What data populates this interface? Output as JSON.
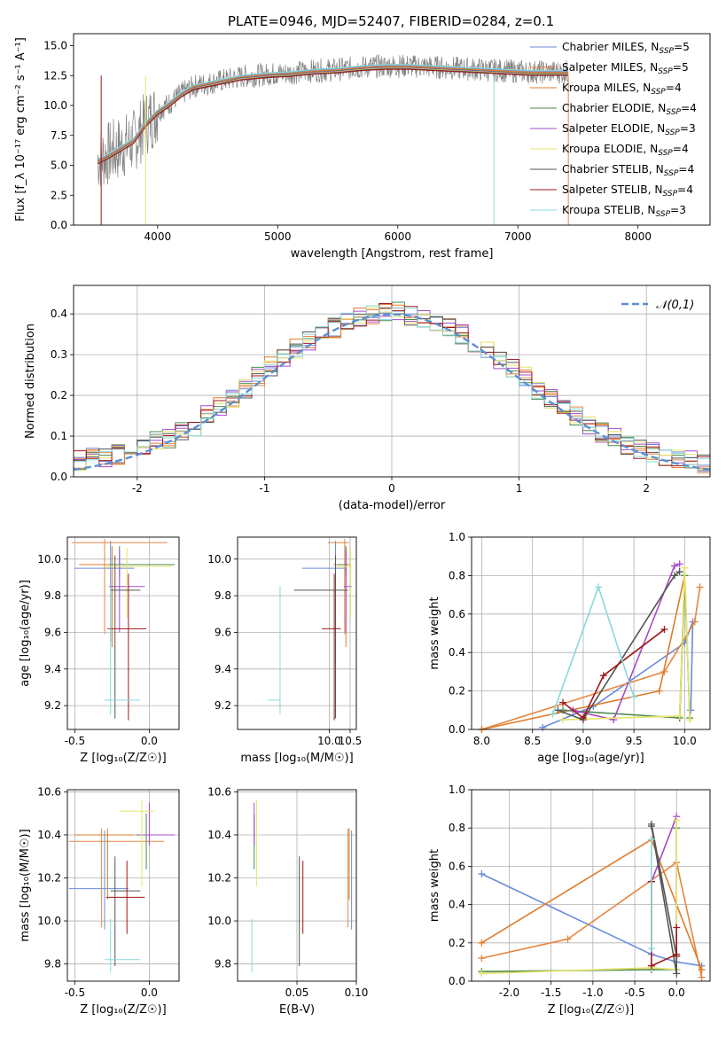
{
  "figure": {
    "title": "PLATE=0946, MJD=52407, FIBERID=0284, z=0.1"
  },
  "series_colors": [
    "#6a8bdb",
    "#e68642",
    "#e07c2a",
    "#4b8a4b",
    "#a64ac9",
    "#e6e36a",
    "#555555",
    "#a01818",
    "#8ad9d9"
  ],
  "chart_data": [
    {
      "type": "line",
      "title": "PLATE=0946, MJD=52407, FIBERID=0284, z=0.1",
      "xlabel": "wavelength [Angstrom, rest frame]",
      "ylabel": "Flux [f_λ 10⁻¹⁷ erg cm⁻² s⁻¹ A⁻¹]",
      "xlim": [
        3300,
        8600
      ],
      "ylim": [
        0,
        16
      ],
      "xticks": [
        4000,
        5000,
        6000,
        7000,
        8000
      ],
      "yticks": [
        0.0,
        2.5,
        5.0,
        7.5,
        10.0,
        12.5,
        15.0
      ],
      "grid": false,
      "legend": "right",
      "data_x": [
        3500,
        3600,
        3700,
        3800,
        3900,
        4000,
        4100,
        4200,
        4300,
        4500,
        4700,
        4900,
        5100,
        5300,
        5500,
        5700,
        5900,
        6100,
        6300,
        6500,
        6700,
        6900,
        7100,
        7300,
        7420
      ],
      "data_y": [
        5.5,
        6.0,
        6.5,
        7.0,
        8.5,
        9.5,
        10.2,
        11.0,
        11.6,
        12.0,
        12.4,
        12.6,
        12.7,
        12.9,
        13.0,
        13.2,
        13.3,
        13.3,
        13.2,
        13.1,
        13.0,
        12.9,
        12.8,
        12.8,
        12.8
      ],
      "model_x": [
        3500,
        3600,
        3700,
        3800,
        3900,
        4000,
        4100,
        4200,
        4300,
        4500,
        4700,
        4900,
        5100,
        5300,
        5500,
        5700,
        5900,
        6100,
        6300,
        6500,
        6700,
        6900,
        7100,
        7300,
        7420
      ],
      "model_y": [
        5.3,
        5.8,
        6.4,
        7.0,
        8.4,
        9.4,
        10.1,
        10.9,
        11.5,
        11.9,
        12.3,
        12.5,
        12.6,
        12.8,
        12.9,
        13.1,
        13.2,
        13.2,
        13.1,
        13.0,
        12.9,
        12.8,
        12.7,
        12.7,
        12.7
      ],
      "legend_entries": [
        {
          "label": "Chabrier MILES, N",
          "sub": "SSP",
          "tail": "=5"
        },
        {
          "label": "Salpeter MILES, N",
          "sub": "SSP",
          "tail": "=5"
        },
        {
          "label": "Kroupa MILES, N",
          "sub": "SSP",
          "tail": "=4"
        },
        {
          "label": "Chabrier ELODIE, N",
          "sub": "SSP",
          "tail": "=4"
        },
        {
          "label": "Salpeter ELODIE, N",
          "sub": "SSP",
          "tail": "=3"
        },
        {
          "label": "Kroupa ELODIE, N",
          "sub": "SSP",
          "tail": "=4"
        },
        {
          "label": "Chabrier STELIB, N",
          "sub": "SSP",
          "tail": "=4"
        },
        {
          "label": "Salpeter STELIB, N",
          "sub": "SSP",
          "tail": "=4"
        },
        {
          "label": "Kroupa STELIB, N",
          "sub": "SSP",
          "tail": "=3"
        }
      ]
    },
    {
      "type": "histogram",
      "xlabel": "(data-model)/error",
      "ylabel": "Normed distribution",
      "xlim": [
        -2.5,
        2.5
      ],
      "ylim": [
        0,
        0.47
      ],
      "xticks": [
        -2,
        -1,
        0,
        1,
        2
      ],
      "yticks": [
        0.0,
        0.1,
        0.2,
        0.3,
        0.4
      ],
      "grid": true,
      "legend": "top-right",
      "bin_edges_start": -2.5,
      "bin_width": 0.1,
      "curve_label": "𝒩(0,1)",
      "curve_color": "#5b8fd6",
      "series": [
        {
          "values": [
            0.04,
            0.05,
            0.048,
            0.055,
            0.07,
            0.075,
            0.09,
            0.095,
            0.11,
            0.125,
            0.15,
            0.17,
            0.19,
            0.215,
            0.245,
            0.27,
            0.295,
            0.315,
            0.335,
            0.35,
            0.365,
            0.385,
            0.395,
            0.4,
            0.405,
            0.405,
            0.395,
            0.39,
            0.38,
            0.365,
            0.35,
            0.33,
            0.315,
            0.29,
            0.27,
            0.245,
            0.215,
            0.19,
            0.17,
            0.15,
            0.125,
            0.11,
            0.095,
            0.08,
            0.07,
            0.06,
            0.052,
            0.045,
            0.04,
            0.03
          ]
        }
      ]
    },
    {
      "type": "errorbar",
      "xlabel": "Z [log₁₀(Z/Z☉)]",
      "ylabel": "age  [log₁₀(age/yr)]",
      "xlim": [
        -0.55,
        0.2
      ],
      "ylim": [
        9.07,
        10.12
      ],
      "xticks": [
        -0.5,
        0.0
      ],
      "yticks": [
        9.2,
        9.4,
        9.6,
        9.8,
        10.0
      ],
      "points": [
        {
          "x": -0.26,
          "xerr": [
            0.24,
            0.16
          ],
          "y": 9.95,
          "yerr": [
            0.4,
            0.15
          ]
        },
        {
          "x": -0.3,
          "xerr": [
            0.22,
            0.42
          ],
          "y": 10.09,
          "yerr": [
            0.5,
            0.02
          ]
        },
        {
          "x": -0.25,
          "xerr": [
            0.22,
            0.18
          ],
          "y": 9.97,
          "yerr": [
            0.45,
            0.1
          ]
        },
        {
          "x": -0.2,
          "xerr": [
            0.07,
            0.37
          ],
          "y": 9.97,
          "yerr": [
            0.07,
            0.1
          ]
        },
        {
          "x": -0.2,
          "xerr": [
            0.07,
            0.17
          ],
          "y": 9.85,
          "yerr": [
            0.25,
            0.2
          ]
        },
        {
          "x": -0.15,
          "xerr": [
            0.15,
            0.3
          ],
          "y": 9.96,
          "yerr": [
            0.28,
            0.1
          ]
        },
        {
          "x": -0.23,
          "xerr": [
            0.03,
            0.17
          ],
          "y": 9.83,
          "yerr": [
            0.7,
            0.19
          ]
        },
        {
          "x": -0.14,
          "xerr": [
            0.14,
            0.12
          ],
          "y": 9.62,
          "yerr": [
            0.5,
            0.3
          ]
        },
        {
          "x": -0.26,
          "xerr": [
            0.04,
            0.2
          ],
          "y": 9.23,
          "yerr": [
            0.08,
            0.62
          ]
        }
      ]
    },
    {
      "type": "errorbar",
      "xlabel": "mass [log₁₀(M/M☉)]",
      "ylabel": "",
      "xlim": [
        7.8,
        10.65
      ],
      "ylim": [
        9.07,
        10.12
      ],
      "xticks": [
        10.0,
        10.5
      ],
      "yticks": [
        9.2,
        9.4,
        9.6,
        9.8,
        10.0
      ],
      "points": [
        {
          "x": 10.15,
          "xerr": [
            0.8,
            0.25
          ],
          "y": 9.95,
          "yerr": [
            0.4,
            0.15
          ]
        },
        {
          "x": 10.37,
          "xerr": [
            0.4,
            0.1
          ],
          "y": 10.09,
          "yerr": [
            0.5,
            0.02
          ]
        },
        {
          "x": 10.4,
          "xerr": [
            0.3,
            0.1
          ],
          "y": 9.97,
          "yerr": [
            0.45,
            0.1
          ]
        },
        {
          "x": 10.4,
          "xerr": [
            0.2,
            0.05
          ],
          "y": 9.97,
          "yerr": [
            0.07,
            0.1
          ]
        },
        {
          "x": 10.4,
          "xerr": [
            0.05,
            0.15
          ],
          "y": 9.85,
          "yerr": [
            0.25,
            0.2
          ]
        },
        {
          "x": 10.51,
          "xerr": [
            0.35,
            0.05
          ],
          "y": 9.96,
          "yerr": [
            0.28,
            0.1
          ]
        },
        {
          "x": 10.15,
          "xerr": [
            1.0,
            0.3
          ],
          "y": 9.83,
          "yerr": [
            0.7,
            0.19
          ]
        },
        {
          "x": 10.12,
          "xerr": [
            0.3,
            0.16
          ],
          "y": 9.62,
          "yerr": [
            0.5,
            0.3
          ]
        },
        {
          "x": 8.82,
          "xerr": [
            0.3,
            0.0
          ],
          "y": 9.23,
          "yerr": [
            0.08,
            0.62
          ]
        }
      ]
    },
    {
      "type": "line",
      "xlabel": "age  [log₁₀(age/yr)]",
      "ylabel": "mass weight",
      "xlim": [
        7.9,
        10.25
      ],
      "ylim": [
        0.0,
        1.0
      ],
      "xticks": [
        8.0,
        8.5,
        9.0,
        9.5,
        10.0,
        10.5
      ],
      "yticks": [
        0.0,
        0.2,
        0.4,
        0.6,
        0.8,
        1.0
      ],
      "grid": true,
      "series": [
        {
          "x": [
            8.6,
            9.1,
            10.0,
            10.08,
            10.06
          ],
          "y": [
            0.01,
            0.12,
            0.45,
            0.56,
            0.1
          ]
        },
        {
          "x": [
            8.0,
            9.8,
            10.1,
            10.15
          ],
          "y": [
            0.0,
            0.3,
            0.56,
            0.74
          ]
        },
        {
          "x": [
            8.0,
            9.75,
            10.0,
            9.95
          ],
          "y": [
            0.0,
            0.2,
            0.8,
            0.06
          ]
        },
        {
          "x": [
            8.8,
            9.95,
            10.0,
            10.05
          ],
          "y": [
            0.1,
            0.06,
            0.8,
            0.06
          ]
        },
        {
          "x": [
            8.9,
            9.3,
            9.9,
            9.95
          ],
          "y": [
            0.1,
            0.05,
            0.85,
            0.86
          ]
        },
        {
          "x": [
            8.8,
            9.95,
            10.0,
            10.05
          ],
          "y": [
            0.05,
            0.07,
            0.84,
            0.05
          ]
        },
        {
          "x": [
            8.75,
            9.0,
            9.9,
            9.95
          ],
          "y": [
            0.1,
            0.05,
            0.8,
            0.82
          ]
        },
        {
          "x": [
            8.8,
            9.0,
            9.2,
            9.8
          ],
          "y": [
            0.14,
            0.06,
            0.28,
            0.52
          ]
        },
        {
          "x": [
            8.7,
            9.15,
            9.5
          ],
          "y": [
            0.08,
            0.74,
            0.17
          ]
        }
      ]
    },
    {
      "type": "errorbar",
      "xlabel": "Z [log₁₀(Z/Z☉)]",
      "ylabel": "mass [log₁₀(M/M☉)]",
      "xlim": [
        -0.55,
        0.2
      ],
      "ylim": [
        9.72,
        10.61
      ],
      "xticks": [
        -0.5,
        0.0
      ],
      "yticks": [
        9.8,
        10.0,
        10.2,
        10.4,
        10.6
      ],
      "points": [
        {
          "x": -0.3,
          "xerr": [
            0.24,
            0.16
          ],
          "y": 10.15,
          "yerr": [
            0.19,
            0.27
          ]
        },
        {
          "x": -0.32,
          "xerr": [
            0.22,
            0.42
          ],
          "y": 10.37,
          "yerr": [
            0.4,
            0.06
          ]
        },
        {
          "x": -0.28,
          "xerr": [
            0.22,
            0.18
          ],
          "y": 10.4,
          "yerr": [
            0.3,
            0.03
          ]
        },
        {
          "x": -0.02,
          "xerr": [
            0.07,
            0.17
          ],
          "y": 10.4,
          "yerr": [
            0.16,
            0.1
          ]
        },
        {
          "x": 0.0,
          "xerr": [
            0.07,
            0.17
          ],
          "y": 10.4,
          "yerr": [
            0.05,
            0.15
          ]
        },
        {
          "x": -0.05,
          "xerr": [
            0.15,
            0.08
          ],
          "y": 10.51,
          "yerr": [
            0.35,
            0.05
          ]
        },
        {
          "x": -0.23,
          "xerr": [
            0.03,
            0.17
          ],
          "y": 10.14,
          "yerr": [
            0.35,
            0.16
          ]
        },
        {
          "x": -0.15,
          "xerr": [
            0.14,
            0.12
          ],
          "y": 10.11,
          "yerr": [
            0.17,
            0.17
          ]
        },
        {
          "x": -0.26,
          "xerr": [
            0.04,
            0.2
          ],
          "y": 9.82,
          "yerr": [
            0.06,
            0.19
          ]
        }
      ]
    },
    {
      "type": "errorbar",
      "xlabel": "E(B-V)",
      "ylabel": "",
      "xlim": [
        0.0,
        0.1
      ],
      "ylim": [
        9.72,
        10.61
      ],
      "xticks": [
        0.05,
        0.1
      ],
      "yticks": [
        9.8,
        10.0,
        10.2,
        10.4,
        10.6
      ],
      "points": [
        {
          "x": 0.096,
          "xerr": [
            0.0,
            0.0
          ],
          "y": 10.15,
          "yerr": [
            0.19,
            0.27
          ]
        },
        {
          "x": 0.093,
          "xerr": [
            0.0,
            0.0
          ],
          "y": 10.37,
          "yerr": [
            0.4,
            0.06
          ]
        },
        {
          "x": 0.094,
          "xerr": [
            0.0,
            0.0
          ],
          "y": 10.4,
          "yerr": [
            0.3,
            0.03
          ]
        },
        {
          "x": 0.014,
          "xerr": [
            0.0,
            0.0
          ],
          "y": 10.4,
          "yerr": [
            0.16,
            0.1
          ]
        },
        {
          "x": 0.014,
          "xerr": [
            0.0,
            0.0
          ],
          "y": 10.4,
          "yerr": [
            0.05,
            0.15
          ]
        },
        {
          "x": 0.016,
          "xerr": [
            0.0,
            0.0
          ],
          "y": 10.51,
          "yerr": [
            0.35,
            0.05
          ]
        },
        {
          "x": 0.052,
          "xerr": [
            0.0,
            0.0
          ],
          "y": 10.14,
          "yerr": [
            0.35,
            0.16
          ]
        },
        {
          "x": 0.055,
          "xerr": [
            0.0,
            0.0
          ],
          "y": 10.11,
          "yerr": [
            0.17,
            0.17
          ]
        },
        {
          "x": 0.012,
          "xerr": [
            0.0,
            0.0
          ],
          "y": 9.82,
          "yerr": [
            0.06,
            0.19
          ]
        }
      ]
    },
    {
      "type": "line",
      "xlabel": "Z [log₁₀(Z/Z☉)]",
      "ylabel": "mass weight",
      "xlim": [
        -2.45,
        0.4
      ],
      "ylim": [
        0.0,
        1.0
      ],
      "xticks": [
        -2.0,
        -1.5,
        -1.0,
        -0.5,
        0.0
      ],
      "yticks": [
        0.0,
        0.2,
        0.4,
        0.6,
        0.8,
        1.0
      ],
      "grid": true,
      "series": [
        {
          "x": [
            -2.33,
            -0.3,
            0.0,
            0.3
          ],
          "y": [
            0.56,
            0.14,
            0.1,
            0.08
          ]
        },
        {
          "x": [
            -2.33,
            -1.3,
            0.0,
            0.3
          ],
          "y": [
            0.12,
            0.22,
            0.62,
            0.02
          ]
        },
        {
          "x": [
            -2.33,
            -0.3,
            0.3
          ],
          "y": [
            0.2,
            0.74,
            0.06
          ]
        },
        {
          "x": [
            -2.33,
            -0.3,
            0.0,
            0.0
          ],
          "y": [
            0.05,
            0.06,
            0.06,
            0.8
          ]
        },
        {
          "x": [
            -0.3,
            0.0,
            0.0
          ],
          "y": [
            0.52,
            0.86,
            0.06
          ]
        },
        {
          "x": [
            -2.33,
            -0.3,
            0.0,
            0.0
          ],
          "y": [
            0.04,
            0.07,
            0.06,
            0.84
          ]
        },
        {
          "x": [
            -0.3,
            0.0,
            0.0,
            -0.3
          ],
          "y": [
            0.81,
            0.04,
            0.13,
            0.82
          ]
        },
        {
          "x": [
            -0.3,
            -0.3,
            0.0,
            0.0
          ],
          "y": [
            0.52,
            0.08,
            0.14,
            0.28
          ]
        },
        {
          "x": [
            -0.3,
            -0.3
          ],
          "y": [
            0.74,
            0.17
          ]
        }
      ]
    }
  ]
}
